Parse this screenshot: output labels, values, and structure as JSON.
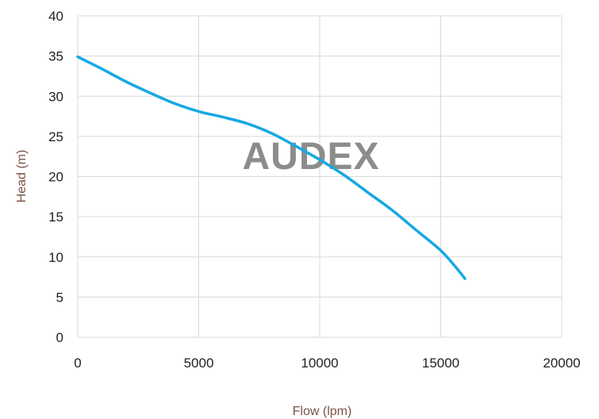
{
  "watermark": "AUDEX",
  "chart_data": {
    "type": "line",
    "xlabel": "Flow (lpm)",
    "ylabel": "Head (m)",
    "xlim": [
      0,
      20000
    ],
    "ylim": [
      0,
      40
    ],
    "xticks": [
      "0",
      "5000",
      "10000",
      "15000",
      "20000"
    ],
    "yticks": [
      "0",
      "5",
      "10",
      "15",
      "20",
      "25",
      "30",
      "35",
      "40"
    ],
    "grid": true,
    "line_color": "#17a8e3",
    "series": [
      {
        "x": [
          0,
          1000,
          2000,
          3000,
          4000,
          5000,
          6000,
          7000,
          8000,
          9000,
          10000,
          11000,
          12000,
          13000,
          14000,
          15000,
          15600,
          16000
        ],
        "y": [
          34.9,
          33.4,
          31.8,
          30.4,
          29.1,
          28.1,
          27.4,
          26.6,
          25.4,
          23.8,
          22.1,
          20.2,
          18.0,
          15.8,
          13.3,
          10.8,
          8.8,
          7.3
        ]
      }
    ]
  }
}
